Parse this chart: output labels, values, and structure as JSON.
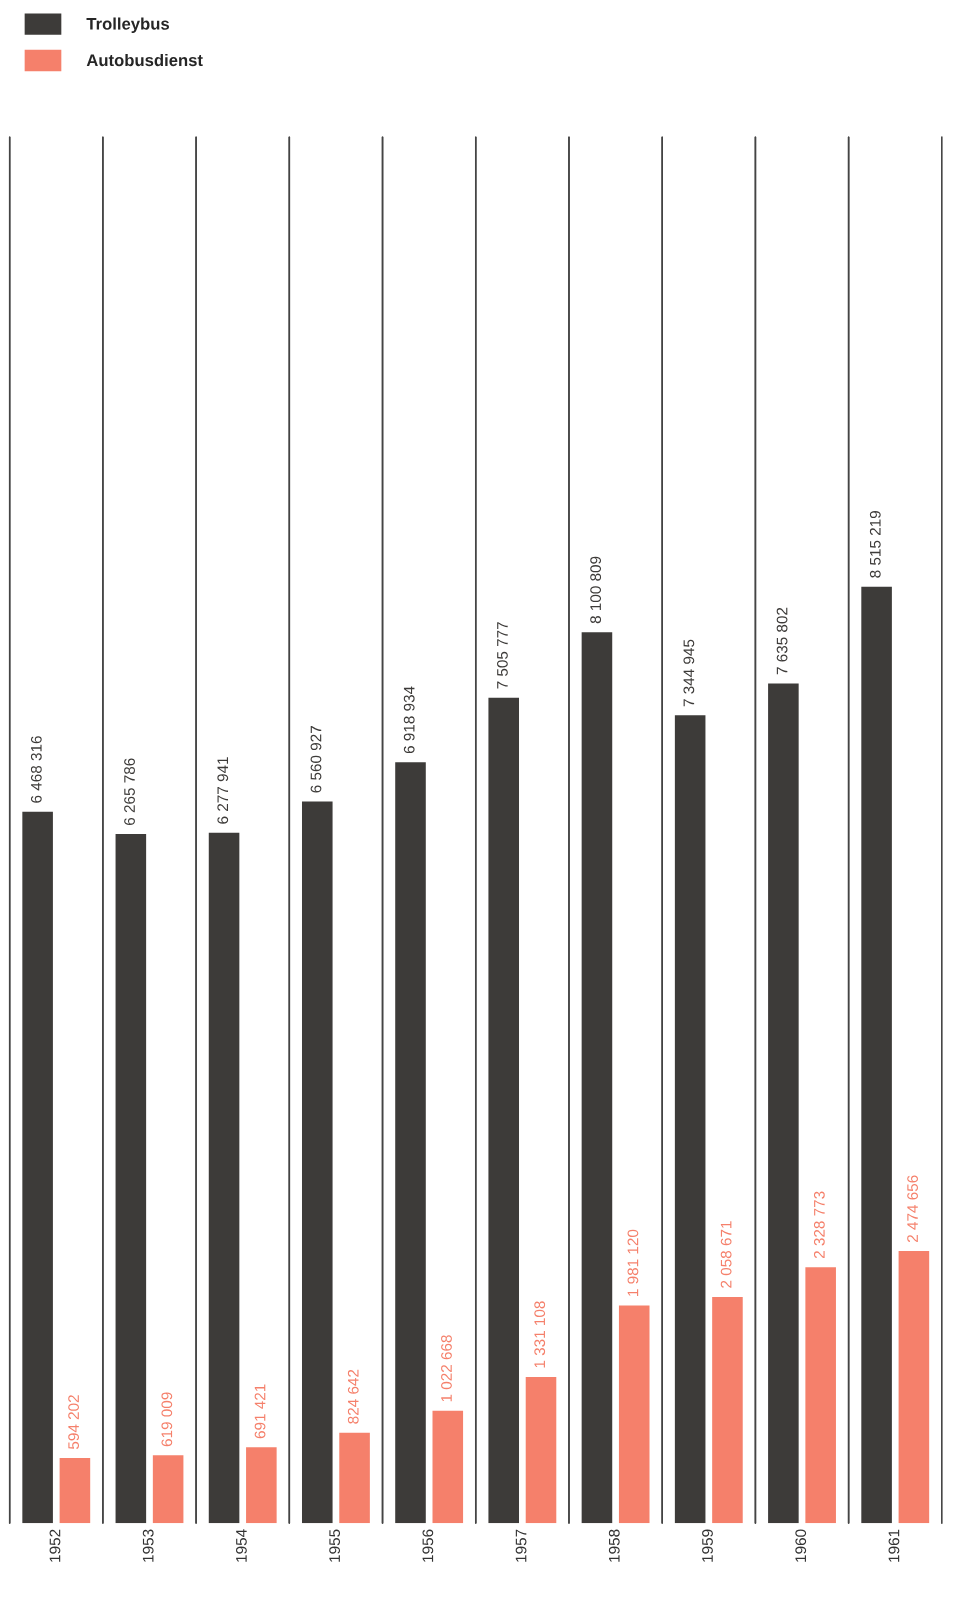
{
  "chart_data": {
    "type": "bar",
    "categories": [
      "1952",
      "1953",
      "1954",
      "1955",
      "1956",
      "1957",
      "1958",
      "1959",
      "1960",
      "1961"
    ],
    "series": [
      {
        "name": "Trolleybus",
        "color": "#3d3b39",
        "values": [
          6468316,
          6265786,
          6277941,
          6560927,
          6918934,
          7505777,
          8100809,
          7344945,
          7635802,
          8515219
        ],
        "value_labels": [
          "6 468 316",
          "6 265 786",
          "6 277 941",
          "6 560 927",
          "6 918 934",
          "7 505 777",
          "8 100 809",
          "7 344 945",
          "7 635 802",
          "8 515 219"
        ]
      },
      {
        "name": "Autobusdienst",
        "color": "#f5806b",
        "values": [
          594202,
          619009,
          691421,
          824642,
          1022668,
          1331108,
          1981120,
          2058671,
          2328773,
          2474656
        ],
        "value_labels": [
          "594 202",
          "619 009",
          "691 421",
          "824 642",
          "1 022 668",
          "1 331 108",
          "1 981 120",
          "2 058 671",
          "2 328 773",
          "2 474 656"
        ]
      }
    ],
    "grid": "x",
    "legend": "top left"
  }
}
